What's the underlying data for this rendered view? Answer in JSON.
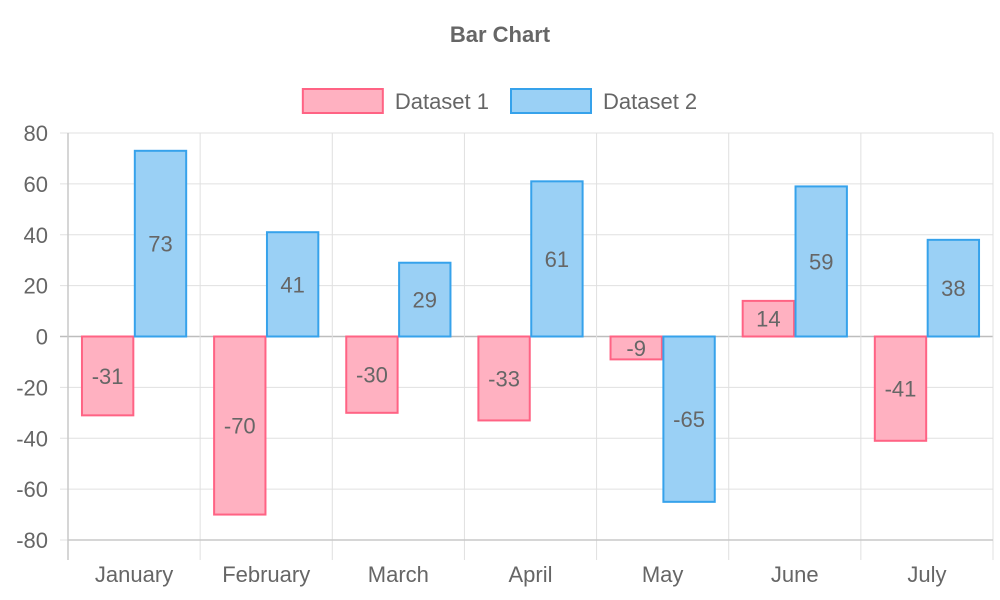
{
  "chart_data": {
    "type": "bar",
    "title": "Bar Chart",
    "categories": [
      "January",
      "February",
      "March",
      "April",
      "May",
      "June",
      "July"
    ],
    "series": [
      {
        "name": "Dataset 1",
        "values": [
          -31,
          -70,
          -30,
          -33,
          -9,
          14,
          -41
        ],
        "fill": "#ffb1c1",
        "stroke": "#ff6384"
      },
      {
        "name": "Dataset 2",
        "values": [
          73,
          41,
          29,
          61,
          -65,
          59,
          38
        ],
        "fill": "#9ad0f5",
        "stroke": "#36a2eb"
      }
    ],
    "ylim": [
      -80,
      80
    ],
    "yticks": [
      80,
      60,
      40,
      20,
      0,
      -20,
      -40,
      -60,
      -80
    ],
    "grid": true,
    "legend_position": "top",
    "data_labels": true
  }
}
